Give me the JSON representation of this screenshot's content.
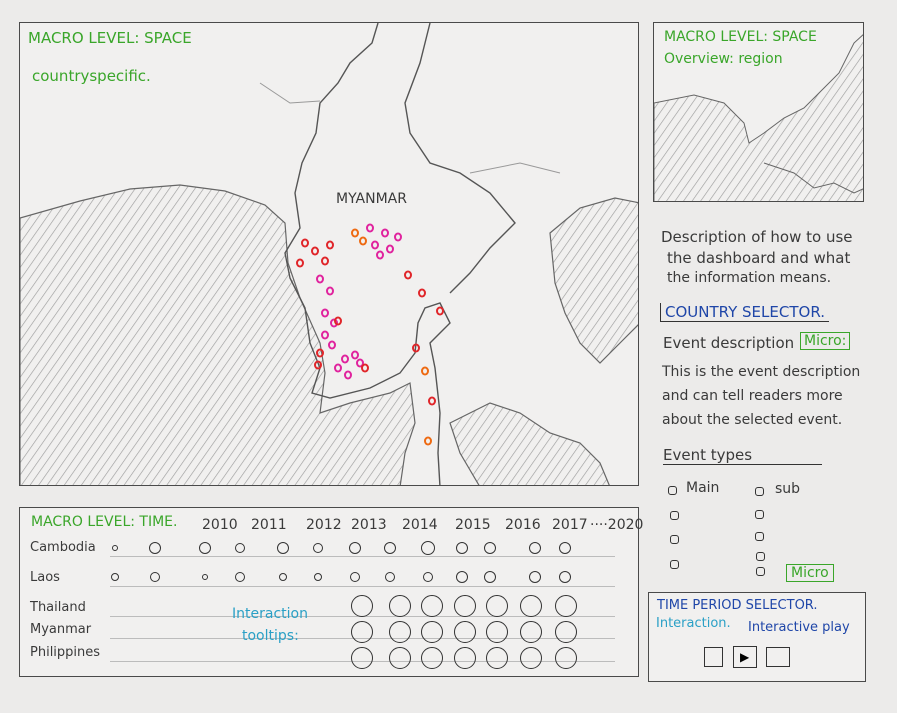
{
  "map_panel": {
    "title": "MACRO LEVEL: SPACE",
    "subtitle": "countryspecific.",
    "country_label": "MYANMAR"
  },
  "overview_panel": {
    "title": "MACRO LEVEL: SPACE",
    "subtitle": "Overview: region"
  },
  "side": {
    "description": [
      "Description of how to use",
      "the dashboard and what",
      "the information means."
    ],
    "country_selector": "COUNTRY SELECTOR.",
    "event_description_label": "Event description",
    "micro_tag": "Micro:",
    "event_text": [
      "This is the event description",
      "and can tell readers more",
      "about the selected event."
    ],
    "event_types_label": "Event types",
    "type_main": "Main",
    "type_sub": "sub",
    "micro_tag2": "Micro"
  },
  "time_panel": {
    "title": "MACRO LEVEL: TIME.",
    "years": [
      "2010",
      "2011",
      "2012",
      "2013",
      "2014",
      "2015",
      "2016",
      "2017",
      "····2020"
    ],
    "countries": [
      "Cambodia",
      "Laos",
      "Thailand",
      "Myanmar",
      "Philippines"
    ],
    "tooltip_note": [
      "Interaction",
      "tooltips:"
    ]
  },
  "time_selector": {
    "title": "TIME PERIOD SELECTOR.",
    "interaction_label": "Interaction.",
    "play_label": "Interactive play"
  },
  "colors": {
    "green": "#3aa62a",
    "blue": "#1f46a8",
    "cyan": "#2aa0c6",
    "red": "#e0262a",
    "magenta": "#e0249e",
    "orange": "#ee6a12"
  }
}
